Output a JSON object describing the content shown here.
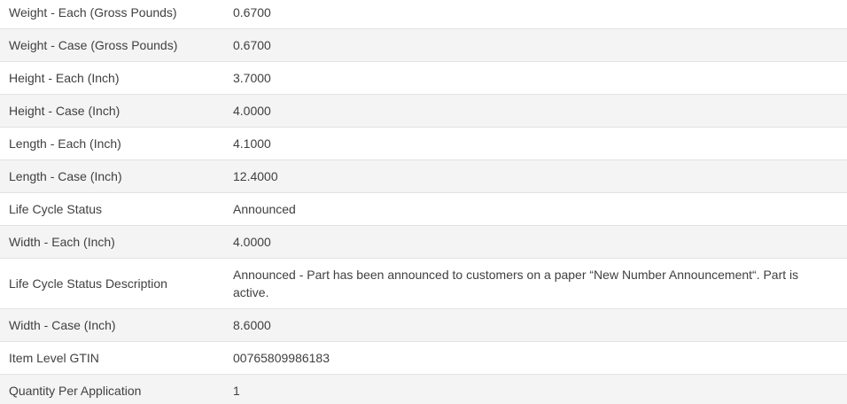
{
  "table": {
    "rows": [
      {
        "label": "Weight - Each (Gross Pounds)",
        "value": "0.6700"
      },
      {
        "label": "Weight - Case (Gross Pounds)",
        "value": "0.6700"
      },
      {
        "label": "Height - Each (Inch)",
        "value": "3.7000"
      },
      {
        "label": "Height - Case (Inch)",
        "value": "4.0000"
      },
      {
        "label": "Length - Each (Inch)",
        "value": "4.1000"
      },
      {
        "label": "Length - Case (Inch)",
        "value": "12.4000"
      },
      {
        "label": "Life Cycle Status",
        "value": "Announced"
      },
      {
        "label": "Width - Each (Inch)",
        "value": "4.0000"
      },
      {
        "label": "Life Cycle Status Description",
        "value": "Announced - Part has been announced to customers on a paper “New Number Announcement“. Part is active."
      },
      {
        "label": "Width - Case (Inch)",
        "value": "8.6000"
      },
      {
        "label": "Item Level GTIN",
        "value": "00765809986183"
      },
      {
        "label": "Quantity Per Application",
        "value": "1"
      }
    ]
  },
  "colors": {
    "stripe_background": "#f4f4f4",
    "row_border": "#e2e2e2",
    "text": "#404040",
    "background": "#ffffff"
  }
}
